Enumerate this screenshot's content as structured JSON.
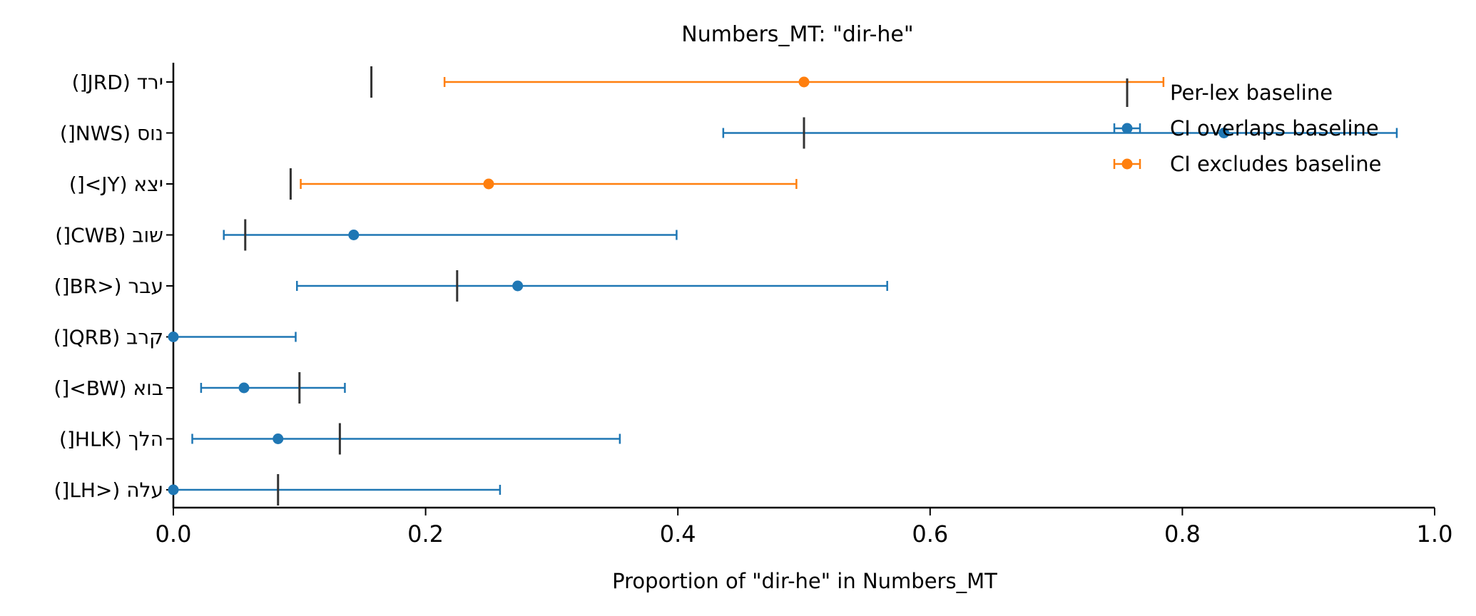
{
  "chart_data": {
    "type": "scatter",
    "title": "Numbers_MT: \"dir-he\"",
    "xlabel": "Proportion of \"dir-he\" in Numbers_MT",
    "ylabel": "",
    "xlim": [
      0.0,
      1.0
    ],
    "xticks": [
      "0.0",
      "0.2",
      "0.4",
      "0.6",
      "0.8",
      "1.0"
    ],
    "categories": [
      "ירד (JRD[)",
      "נוס (NWS[)",
      "יצא (JY>[)",
      "שוב (CWB[)",
      "עבר (<BR[)",
      "קרב (QRB[)",
      "בוא (BW>[)",
      "הלך (HLK[)",
      "עלה (<LH[)"
    ],
    "points": [
      {
        "label": "ירד (JRD[)",
        "value": 0.5,
        "ci_low": 0.215,
        "ci_high": 0.785,
        "baseline": 0.157,
        "group": "excludes"
      },
      {
        "label": "נוס (NWS[)",
        "value": 0.833,
        "ci_low": 0.436,
        "ci_high": 0.97,
        "baseline": 0.5,
        "group": "overlaps"
      },
      {
        "label": "יצא (JY>[)",
        "value": 0.25,
        "ci_low": 0.101,
        "ci_high": 0.494,
        "baseline": 0.093,
        "group": "excludes"
      },
      {
        "label": "שוב (CWB[)",
        "value": 0.143,
        "ci_low": 0.04,
        "ci_high": 0.399,
        "baseline": 0.057,
        "group": "overlaps"
      },
      {
        "label": "עבר (<BR[)",
        "value": 0.273,
        "ci_low": 0.098,
        "ci_high": 0.566,
        "baseline": 0.225,
        "group": "overlaps"
      },
      {
        "label": "קרב (QRB[)",
        "value": 0.0,
        "ci_low": 0.0,
        "ci_high": 0.097,
        "baseline": null,
        "group": "overlaps"
      },
      {
        "label": "בוא (BW>[)",
        "value": 0.056,
        "ci_low": 0.022,
        "ci_high": 0.136,
        "baseline": 0.1,
        "group": "overlaps"
      },
      {
        "label": "הלך (HLK[)",
        "value": 0.083,
        "ci_low": 0.015,
        "ci_high": 0.354,
        "baseline": 0.132,
        "group": "overlaps"
      },
      {
        "label": "עלה (<LH[)",
        "value": 0.0,
        "ci_low": 0.0,
        "ci_high": 0.259,
        "baseline": 0.083,
        "group": "overlaps"
      }
    ],
    "legend": {
      "placement": "top-right",
      "items": [
        {
          "label": "Per-lex baseline",
          "kind": "baseline"
        },
        {
          "label": "CI overlaps baseline",
          "kind": "overlaps"
        },
        {
          "label": "CI excludes baseline",
          "kind": "excludes"
        }
      ]
    },
    "colors": {
      "overlaps": "#1f77b4",
      "excludes": "#ff7f0e",
      "baseline": "#333333",
      "axis": "#000000"
    },
    "grid": false
  }
}
